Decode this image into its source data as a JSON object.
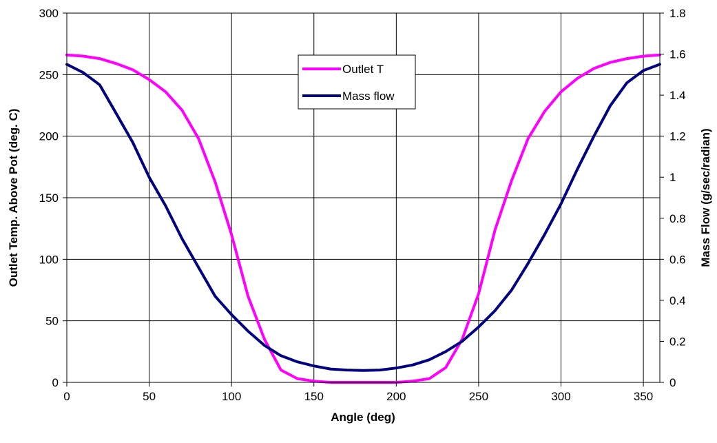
{
  "chart_data": {
    "type": "line",
    "xlabel": "Angle (deg)",
    "ylabel_left": "Outlet Temp. Above Pot (deg. C)",
    "ylabel_right": "Mass Flow (g/sec/radian)",
    "xlim": [
      0,
      360
    ],
    "xticks": [
      0,
      50,
      100,
      150,
      200,
      250,
      300,
      350
    ],
    "ylim_left": [
      0,
      300
    ],
    "yticks_left": [
      0,
      50,
      100,
      150,
      200,
      250,
      300
    ],
    "ylim_right": [
      0,
      1.8
    ],
    "yticks_right": [
      "0",
      "0.2",
      "0.4",
      "0.6",
      "0.8",
      "1",
      "1.2",
      "1.4",
      "1.6",
      "1.8"
    ],
    "grid": true,
    "legend_position": "top-center",
    "series": [
      {
        "name": "Outlet T",
        "axis": "left",
        "color": "#ff00ff",
        "x": [
          0,
          10,
          20,
          30,
          40,
          50,
          60,
          70,
          80,
          90,
          100,
          110,
          120,
          130,
          140,
          150,
          160,
          170,
          180,
          190,
          200,
          210,
          220,
          230,
          240,
          250,
          260,
          270,
          280,
          290,
          300,
          310,
          320,
          330,
          340,
          350,
          360
        ],
        "y": [
          266,
          265,
          263,
          259,
          254,
          246,
          236,
          221,
          198,
          163,
          120,
          70,
          35,
          10,
          3,
          1,
          0,
          0,
          0,
          0,
          0,
          1,
          3,
          12,
          35,
          72,
          124,
          164,
          198,
          220,
          236,
          247,
          255,
          260,
          263,
          265,
          266
        ]
      },
      {
        "name": "Mass flow",
        "axis": "right",
        "color": "#000080",
        "x": [
          0,
          10,
          20,
          30,
          40,
          50,
          60,
          70,
          80,
          90,
          100,
          110,
          120,
          130,
          140,
          150,
          160,
          170,
          180,
          190,
          200,
          210,
          220,
          230,
          240,
          250,
          260,
          270,
          280,
          290,
          300,
          310,
          320,
          330,
          340,
          350,
          360
        ],
        "y": [
          1.55,
          1.51,
          1.45,
          1.31,
          1.17,
          1.0,
          0.86,
          0.7,
          0.56,
          0.42,
          0.33,
          0.25,
          0.18,
          0.13,
          0.1,
          0.08,
          0.065,
          0.06,
          0.058,
          0.06,
          0.07,
          0.085,
          0.11,
          0.15,
          0.2,
          0.27,
          0.35,
          0.45,
          0.58,
          0.72,
          0.87,
          1.04,
          1.2,
          1.35,
          1.46,
          1.52,
          1.55
        ]
      }
    ]
  }
}
